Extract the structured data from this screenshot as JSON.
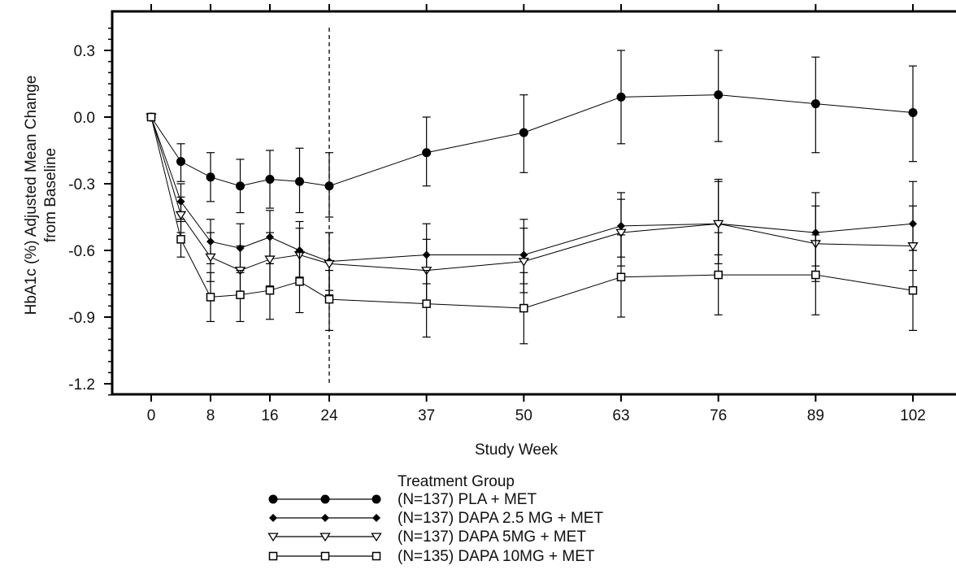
{
  "chart_data": {
    "type": "line",
    "xlabel": "Study Week",
    "ylabel_line1": "HbA1c (%) Adjusted Mean Change",
    "ylabel_line2": "from Baseline",
    "ylim": [
      -1.28,
      0.46
    ],
    "yticks": [
      0.3,
      0.0,
      -0.3,
      -0.6,
      -0.9,
      -1.2
    ],
    "ytick_labels": [
      "0.3",
      "0.0",
      "-0.3",
      "-0.6",
      "-0.9",
      "-1.2"
    ],
    "xticks": [
      0,
      8,
      16,
      24,
      37,
      50,
      63,
      76,
      89,
      102
    ],
    "xtick_labels": [
      "0",
      "8",
      "16",
      "24",
      "37",
      "50",
      "63",
      "76",
      "89",
      "102"
    ],
    "reference_line_x": 24,
    "grid": false,
    "legend": {
      "title": "Treatment Group",
      "placement": "bottom-center"
    },
    "series": [
      {
        "name": "(N=137) PLA + MET",
        "marker": "circle",
        "x": [
          0,
          4,
          8,
          12,
          16,
          20,
          24,
          37,
          50,
          63,
          76,
          89,
          102
        ],
        "y": [
          0.0,
          -0.2,
          -0.27,
          -0.31,
          -0.28,
          -0.29,
          -0.31,
          -0.16,
          -0.07,
          0.09,
          0.1,
          0.06,
          0.02
        ],
        "lo": [
          0.0,
          -0.29,
          -0.38,
          -0.43,
          -0.41,
          -0.43,
          -0.45,
          -0.31,
          -0.25,
          -0.12,
          -0.11,
          -0.16,
          -0.2
        ],
        "hi": [
          0.0,
          -0.12,
          -0.16,
          -0.19,
          -0.15,
          -0.14,
          -0.16,
          0.0,
          0.1,
          0.3,
          0.3,
          0.27,
          0.23
        ]
      },
      {
        "name": "(N=137) DAPA 2.5 MG + MET",
        "marker": "diamond",
        "x": [
          0,
          4,
          8,
          12,
          16,
          20,
          24,
          37,
          50,
          63,
          76,
          89,
          102
        ],
        "y": [
          0.0,
          -0.38,
          -0.56,
          -0.59,
          -0.54,
          -0.6,
          -0.65,
          -0.62,
          -0.62,
          -0.49,
          -0.48,
          -0.52,
          -0.48
        ],
        "lo": [
          0.0,
          -0.46,
          -0.66,
          -0.7,
          -0.66,
          -0.72,
          -0.78,
          -0.75,
          -0.75,
          -0.63,
          -0.62,
          -0.67,
          -0.6
        ],
        "hi": [
          0.0,
          -0.3,
          -0.46,
          -0.48,
          -0.42,
          -0.47,
          -0.52,
          -0.48,
          -0.46,
          -0.34,
          -0.28,
          -0.34,
          -0.29
        ]
      },
      {
        "name": "(N=137) DAPA 5MG + MET",
        "marker": "triangle-down",
        "x": [
          0,
          4,
          8,
          12,
          16,
          20,
          24,
          37,
          50,
          63,
          76,
          89,
          102
        ],
        "y": [
          0.0,
          -0.44,
          -0.63,
          -0.69,
          -0.64,
          -0.62,
          -0.66,
          -0.69,
          -0.65,
          -0.52,
          -0.48,
          -0.57,
          -0.58
        ],
        "lo": [
          0.0,
          -0.52,
          -0.74,
          -0.8,
          -0.76,
          -0.74,
          -0.8,
          -0.83,
          -0.79,
          -0.67,
          -0.66,
          -0.74,
          -0.69
        ],
        "hi": [
          0.0,
          -0.36,
          -0.52,
          -0.58,
          -0.52,
          -0.5,
          -0.52,
          -0.55,
          -0.5,
          -0.37,
          -0.29,
          -0.4,
          -0.4
        ]
      },
      {
        "name": "(N=135) DAPA 10MG + MET",
        "marker": "square",
        "x": [
          0,
          4,
          8,
          12,
          16,
          20,
          24,
          37,
          50,
          63,
          76,
          89,
          102
        ],
        "y": [
          0.0,
          -0.55,
          -0.81,
          -0.8,
          -0.78,
          -0.74,
          -0.82,
          -0.84,
          -0.86,
          -0.72,
          -0.71,
          -0.71,
          -0.78
        ],
        "lo": [
          0.0,
          -0.63,
          -0.92,
          -0.92,
          -0.91,
          -0.88,
          -0.96,
          -0.99,
          -1.02,
          -0.9,
          -0.89,
          -0.89,
          -0.96
        ],
        "hi": [
          0.0,
          -0.47,
          -0.7,
          -0.69,
          -0.66,
          -0.61,
          -0.69,
          -0.69,
          -0.7,
          -0.53,
          -0.52,
          -0.53,
          -0.6
        ]
      }
    ]
  }
}
